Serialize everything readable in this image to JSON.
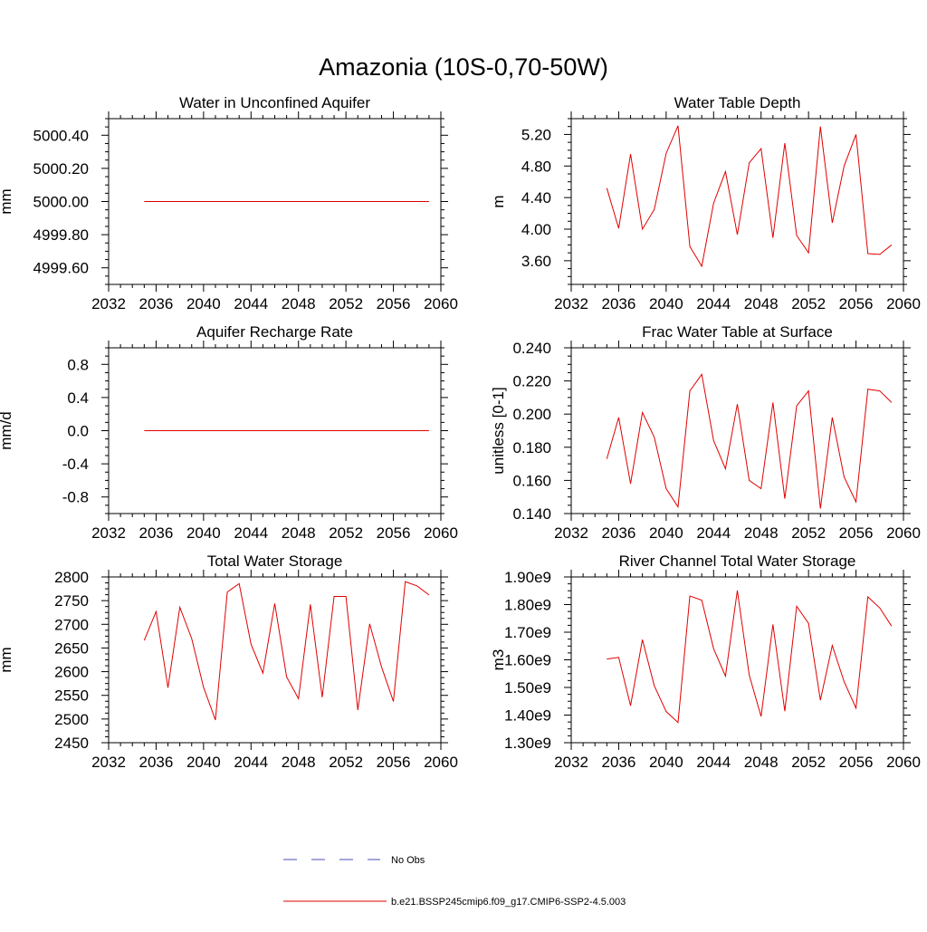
{
  "page": {
    "title": "Amazonia (10S-0,70-50W)"
  },
  "legend": {
    "entries": [
      {
        "label": "No Obs",
        "color": "#4b4bb4",
        "style": "dashed"
      },
      {
        "label": "b.e21.BSSP245cmip6.f09_g17.CMIP6-SSP2-4.5.003",
        "color": "#e00000",
        "style": "solid"
      }
    ]
  },
  "chart_data": [
    {
      "type": "line",
      "title": "Water in Unconfined Aquifer",
      "xlabel": "",
      "ylabel": "mm",
      "xlim": [
        2032,
        2060
      ],
      "ylim": [
        4999.5,
        5000.5
      ],
      "xticks": [
        2032,
        2036,
        2040,
        2044,
        2048,
        2052,
        2056,
        2060
      ],
      "yticks": [
        4999.6,
        4999.8,
        5000.0,
        5000.2,
        5000.4
      ],
      "ytick_labels": [
        "4999.60",
        "4999.80",
        "5000.00",
        "5000.20",
        "5000.40"
      ],
      "series": [
        {
          "name": "b.e21.BSSP245cmip6.f09_g17.CMIP6-SSP2-4.5.003",
          "color": "#e00000",
          "x": [
            2035,
            2059
          ],
          "values": [
            5000.0,
            5000.0
          ]
        }
      ]
    },
    {
      "type": "line",
      "title": "Water Table Depth",
      "xlabel": "",
      "ylabel": "m",
      "xlim": [
        2032,
        2060
      ],
      "ylim": [
        3.3,
        5.4
      ],
      "xticks": [
        2032,
        2036,
        2040,
        2044,
        2048,
        2052,
        2056,
        2060
      ],
      "yticks": [
        3.6,
        4.0,
        4.4,
        4.8,
        5.2
      ],
      "ytick_labels": [
        "3.60",
        "4.00",
        "4.40",
        "4.80",
        "5.20"
      ],
      "series": [
        {
          "name": "b.e21.BSSP245cmip6.f09_g17.CMIP6-SSP2-4.5.003",
          "color": "#e00000",
          "x": [
            2035,
            2036,
            2037,
            2038,
            2039,
            2040,
            2041,
            2042,
            2043,
            2044,
            2045,
            2046,
            2047,
            2048,
            2049,
            2050,
            2051,
            2052,
            2053,
            2054,
            2055,
            2056,
            2057,
            2058,
            2059
          ],
          "values": [
            4.52,
            4.01,
            4.95,
            4.0,
            4.25,
            4.96,
            5.31,
            3.78,
            3.53,
            4.33,
            4.73,
            3.93,
            4.84,
            5.02,
            3.89,
            5.09,
            3.92,
            3.7,
            5.3,
            4.08,
            4.8,
            5.2,
            3.69,
            3.68,
            3.8
          ]
        }
      ]
    },
    {
      "type": "line",
      "title": "Aquifer Recharge Rate",
      "xlabel": "",
      "ylabel": "mm/d",
      "xlim": [
        2032,
        2060
      ],
      "ylim": [
        -1.0,
        1.0
      ],
      "xticks": [
        2032,
        2036,
        2040,
        2044,
        2048,
        2052,
        2056,
        2060
      ],
      "yticks": [
        -0.8,
        -0.4,
        0.0,
        0.4,
        0.8
      ],
      "ytick_labels": [
        "-0.8",
        "-0.4",
        "0.0",
        "0.4",
        "0.8"
      ],
      "series": [
        {
          "name": "b.e21.BSSP245cmip6.f09_g17.CMIP6-SSP2-4.5.003",
          "color": "#e00000",
          "x": [
            2035,
            2059
          ],
          "values": [
            0.0,
            0.0
          ]
        }
      ]
    },
    {
      "type": "line",
      "title": "Frac Water Table at Surface",
      "xlabel": "",
      "ylabel": "unitless [0-1]",
      "xlim": [
        2032,
        2060
      ],
      "ylim": [
        0.14,
        0.24
      ],
      "xticks": [
        2032,
        2036,
        2040,
        2044,
        2048,
        2052,
        2056,
        2060
      ],
      "yticks": [
        0.14,
        0.16,
        0.18,
        0.2,
        0.22,
        0.24
      ],
      "ytick_labels": [
        "0.140",
        "0.160",
        "0.180",
        "0.200",
        "0.220",
        "0.240"
      ],
      "series": [
        {
          "name": "b.e21.BSSP245cmip6.f09_g17.CMIP6-SSP2-4.5.003",
          "color": "#e00000",
          "x": [
            2035,
            2036,
            2037,
            2038,
            2039,
            2040,
            2041,
            2042,
            2043,
            2044,
            2045,
            2046,
            2047,
            2048,
            2049,
            2050,
            2051,
            2052,
            2053,
            2054,
            2055,
            2056,
            2057,
            2058,
            2059
          ],
          "values": [
            0.173,
            0.198,
            0.158,
            0.201,
            0.186,
            0.155,
            0.144,
            0.214,
            0.224,
            0.184,
            0.167,
            0.206,
            0.16,
            0.155,
            0.207,
            0.149,
            0.205,
            0.214,
            0.143,
            0.198,
            0.162,
            0.147,
            0.215,
            0.214,
            0.207
          ]
        }
      ]
    },
    {
      "type": "line",
      "title": "Total Water Storage",
      "xlabel": "",
      "ylabel": "mm",
      "xlim": [
        2032,
        2060
      ],
      "ylim": [
        2450,
        2800
      ],
      "xticks": [
        2032,
        2036,
        2040,
        2044,
        2048,
        2052,
        2056,
        2060
      ],
      "yticks": [
        2450,
        2500,
        2550,
        2600,
        2650,
        2700,
        2750,
        2800
      ],
      "ytick_labels": [
        "2450",
        "2500",
        "2550",
        "2600",
        "2650",
        "2700",
        "2750",
        "2800"
      ],
      "series": [
        {
          "name": "b.e21.BSSP245cmip6.f09_g17.CMIP6-SSP2-4.5.003",
          "color": "#e00000",
          "x": [
            2035,
            2036,
            2037,
            2038,
            2039,
            2040,
            2041,
            2042,
            2043,
            2044,
            2045,
            2046,
            2047,
            2048,
            2049,
            2050,
            2051,
            2052,
            2053,
            2054,
            2055,
            2056,
            2057,
            2058,
            2059
          ],
          "values": [
            2666,
            2727,
            2566,
            2736,
            2670,
            2567,
            2498,
            2768,
            2786,
            2658,
            2597,
            2744,
            2589,
            2543,
            2742,
            2546,
            2759,
            2759,
            2519,
            2701,
            2610,
            2537,
            2790,
            2781,
            2762
          ]
        }
      ]
    },
    {
      "type": "line",
      "title": "River Channel Total Water Storage",
      "xlabel": "",
      "ylabel": "m3",
      "xlim": [
        2032,
        2060
      ],
      "ylim": [
        1300000000.0,
        1900000000.0
      ],
      "xticks": [
        2032,
        2036,
        2040,
        2044,
        2048,
        2052,
        2056,
        2060
      ],
      "yticks": [
        1300000000.0,
        1400000000.0,
        1500000000.0,
        1600000000.0,
        1700000000.0,
        1800000000.0,
        1900000000.0
      ],
      "ytick_labels": [
        "1.30e9",
        "1.40e9",
        "1.50e9",
        "1.60e9",
        "1.70e9",
        "1.80e9",
        "1.90e9"
      ],
      "series": [
        {
          "name": "b.e21.BSSP245cmip6.f09_g17.CMIP6-SSP2-4.5.003",
          "color": "#e00000",
          "x": [
            2035,
            2036,
            2037,
            2038,
            2039,
            2040,
            2041,
            2042,
            2043,
            2044,
            2045,
            2046,
            2047,
            2048,
            2049,
            2050,
            2051,
            2052,
            2053,
            2054,
            2055,
            2056,
            2057,
            2058,
            2059
          ],
          "values": [
            1603000000.0,
            1609000000.0,
            1434000000.0,
            1673000000.0,
            1506000000.0,
            1413000000.0,
            1373000000.0,
            1831000000.0,
            1816000000.0,
            1640000000.0,
            1541000000.0,
            1851000000.0,
            1545000000.0,
            1395000000.0,
            1728000000.0,
            1414000000.0,
            1794000000.0,
            1732000000.0,
            1454000000.0,
            1652000000.0,
            1521000000.0,
            1425000000.0,
            1828000000.0,
            1788000000.0,
            1722000000.0
          ]
        }
      ]
    }
  ]
}
